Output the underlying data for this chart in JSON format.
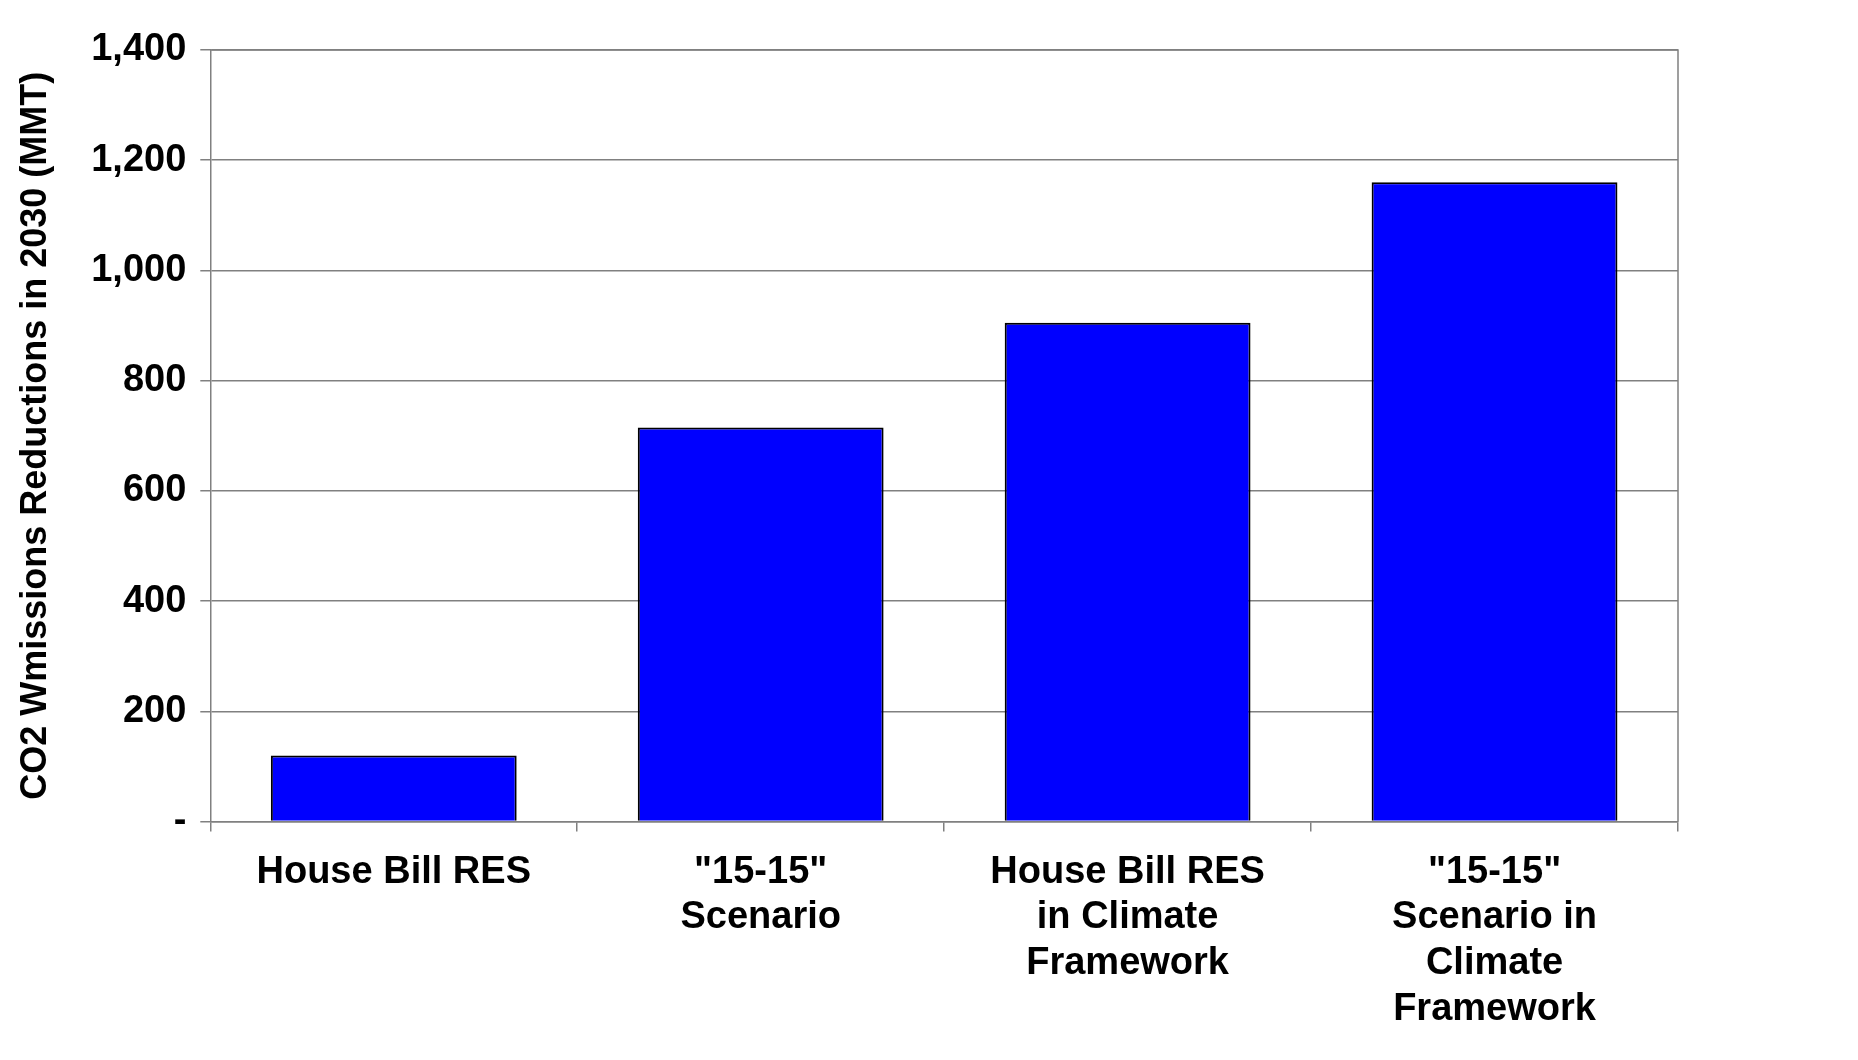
{
  "chart_data": {
    "type": "bar",
    "ylabel": "CO2 Wmissions Reductions in 2030 (MMT)",
    "categories": [
      "House Bill RES",
      "\"15-15\" Scenario",
      "House Bill RES in Climate Framework",
      "\"15-15\" Scenario in Climate Framework"
    ],
    "values": [
      120,
      715,
      905,
      1160
    ],
    "color": "#0000ff",
    "ylim": [
      0,
      1400
    ],
    "yticks": [
      {
        "value": 0,
        "label": "-"
      },
      200,
      400,
      600,
      800,
      {
        "value": 1000,
        "label": "1,000"
      },
      {
        "value": 1200,
        "label": "1,200"
      },
      {
        "value": 1400,
        "label": "1,400"
      }
    ],
    "grid": "y",
    "legend": false
  }
}
